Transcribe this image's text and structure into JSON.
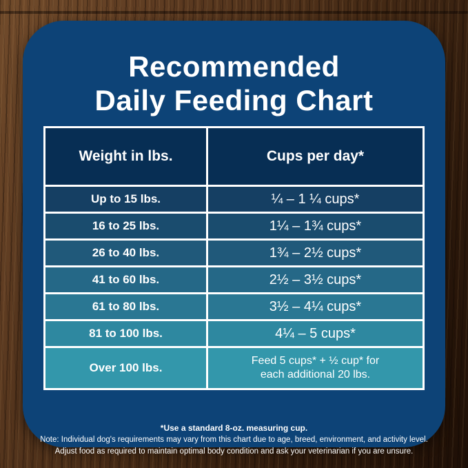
{
  "title": {
    "line1": "Recommended",
    "line2": "Daily Feeding Chart"
  },
  "table": {
    "headers": {
      "weight": "Weight in lbs.",
      "cups": "Cups per day*"
    },
    "rows": [
      {
        "weight": "Up to 15 lbs.",
        "cups": "¼ – 1 ¼ cups*"
      },
      {
        "weight": "16 to 25 lbs.",
        "cups": "1¼ – 1¾ cups*"
      },
      {
        "weight": "26 to 40 lbs.",
        "cups": "1¾ – 2½ cups*"
      },
      {
        "weight": "41 to 60 lbs.",
        "cups": "2½ – 3½ cups*"
      },
      {
        "weight": "61 to 80 lbs.",
        "cups": "3½ – 4¼ cups*"
      },
      {
        "weight": "81 to 100 lbs.",
        "cups": "4¼ – 5 cups*"
      },
      {
        "weight": "Over 100 lbs.",
        "cups": "Feed 5 cups* + ½ cup* for",
        "cups_line2": "each additional 20 lbs."
      }
    ]
  },
  "footnotes": {
    "line1": "*Use a standard 8-oz. measuring cup.",
    "line2": "Note: Individual dog's requirements may vary from this chart due to age, breed, environment, and activity level.",
    "line3": "Adjust food as required to maintain optimal body condition and ask your veterinarian if you are unsure."
  },
  "colors": {
    "card_background": "#0d4377",
    "header_cell_background": "#072e54",
    "table_border": "#ffffff",
    "text": "#ffffff",
    "row_gradient": [
      "#153f63",
      "#1a4c6e",
      "#20597a",
      "#256887",
      "#2a7793",
      "#2e88a0",
      "#3397ab"
    ]
  },
  "chart_data": {
    "type": "table",
    "title": "Recommended Daily Feeding Chart",
    "columns": [
      "Weight in lbs.",
      "Cups per day*"
    ],
    "rows": [
      [
        "Up to 15 lbs.",
        "¼ – 1 ¼ cups*"
      ],
      [
        "16 to 25 lbs.",
        "1¼ – 1¾ cups*"
      ],
      [
        "26 to 40 lbs.",
        "1¾ – 2½ cups*"
      ],
      [
        "41 to 60 lbs.",
        "2½ – 3½ cups*"
      ],
      [
        "61 to 80 lbs.",
        "3½ – 4¼ cups*"
      ],
      [
        "81 to 100 lbs.",
        "4¼ – 5 cups*"
      ],
      [
        "Over 100 lbs.",
        "Feed 5 cups* + ½ cup* for each additional 20 lbs."
      ]
    ],
    "footnote": "*Use a standard 8-oz. measuring cup."
  }
}
